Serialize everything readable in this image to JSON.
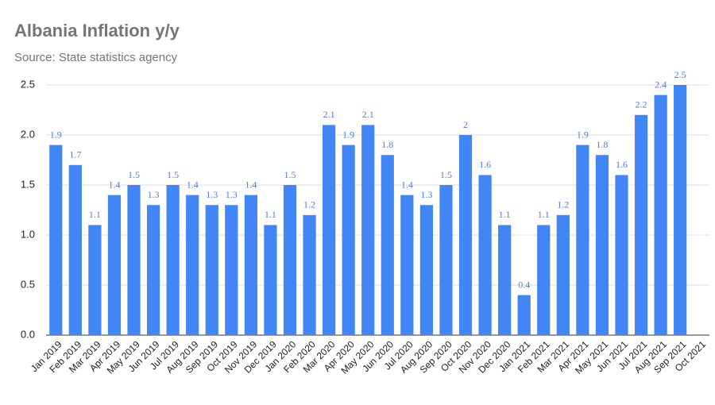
{
  "chart_data": {
    "type": "bar",
    "title": "Albania Inflation y/y",
    "subtitle": "Source: State statistics agency",
    "categories": [
      "Jan 2019",
      "Feb 2019",
      "Mar 2019",
      "Apr 2019",
      "May 2019",
      "Jun 2019",
      "Jul 2019",
      "Aug 2019",
      "Sep 2019",
      "Oct 2019",
      "Nov 2019",
      "Dec 2019",
      "Jan 2020",
      "Feb 2020",
      "Mar 2020",
      "Apr 2020",
      "May 2020",
      "Jun 2020",
      "Jul 2020",
      "Aug 2020",
      "Sep 2020",
      "Oct 2020",
      "Nov 2020",
      "Dec 2020",
      "Jan 2021",
      "Feb 2021",
      "Mar 2021",
      "Apr 2021",
      "May 2021",
      "Jun 2021",
      "Jul 2021",
      "Aug 2021",
      "Sep 2021",
      "Oct 2021"
    ],
    "values": [
      1.9,
      1.7,
      1.1,
      1.4,
      1.5,
      1.3,
      1.5,
      1.4,
      1.3,
      1.3,
      1.4,
      1.1,
      1.5,
      1.2,
      2.1,
      1.9,
      2.1,
      1.8,
      1.4,
      1.3,
      1.5,
      2,
      1.6,
      1.1,
      0.4,
      1.1,
      1.2,
      1.9,
      1.8,
      1.6,
      2.2,
      2.4,
      2.5,
      null
    ],
    "color": "#4285f4",
    "ylim": [
      0,
      2.5
    ],
    "yticks": [
      {
        "value": 0,
        "label": "0.0"
      },
      0.5,
      {
        "value": 1,
        "label": "1.0"
      },
      1.5,
      {
        "value": 2,
        "label": "2.0"
      },
      2.5
    ],
    "grid": true
  }
}
